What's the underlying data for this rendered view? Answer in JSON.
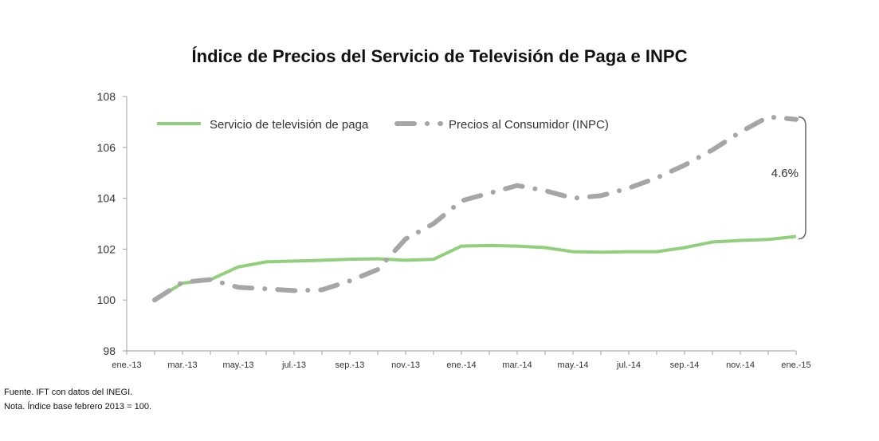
{
  "chart_data": {
    "type": "line",
    "title": "Índice de Precios del Servicio de Televisión de Paga e INPC",
    "xlabel": "",
    "ylabel": "",
    "ylim": [
      98,
      108
    ],
    "yticks": [
      "98",
      "100",
      "102",
      "104",
      "106",
      "108"
    ],
    "grid": false,
    "legend_position": "top-left",
    "categories": [
      "ene.-13",
      "feb.-13",
      "mar.-13",
      "abr.-13",
      "may.-13",
      "jun.-13",
      "jul.-13",
      "ago.-13",
      "sep.-13",
      "oct.-13",
      "nov.-13",
      "dic.-13",
      "ene.-14",
      "feb.-14",
      "mar.-14",
      "abr.-14",
      "may.-14",
      "jun.-14",
      "jul.-14",
      "ago.-14",
      "sep.-14",
      "oct.-14",
      "nov.-14",
      "dic.-14",
      "ene.-15"
    ],
    "xtick_labels": [
      "ene.-13",
      "mar.-13",
      "may.-13",
      "jul.-13",
      "sep.-13",
      "nov.-13",
      "ene.-14",
      "mar.-14",
      "may.-14",
      "jul.-14",
      "sep.-14",
      "nov.-14",
      "ene.-15"
    ],
    "series": [
      {
        "name": "Servicio de televisión de paga",
        "color": "#92cf7d",
        "style": "solid",
        "values": [
          null,
          100.0,
          100.66,
          100.8,
          101.3,
          101.5,
          101.53,
          101.56,
          101.6,
          101.62,
          101.56,
          101.6,
          102.12,
          102.14,
          102.12,
          102.06,
          101.9,
          101.88,
          101.9,
          101.9,
          102.06,
          102.28,
          102.34,
          102.38,
          102.5
        ]
      },
      {
        "name": "Precios al Consumidor (INPC)",
        "color": "#a6a6a6",
        "style": "dash-dot",
        "values": [
          null,
          100.0,
          100.7,
          100.8,
          100.5,
          100.44,
          100.37,
          100.4,
          100.75,
          101.2,
          102.4,
          103.0,
          103.9,
          104.2,
          104.5,
          104.3,
          104.0,
          104.1,
          104.4,
          104.8,
          105.3,
          105.9,
          106.6,
          107.2,
          107.1
        ]
      }
    ],
    "annotation": "4.6%"
  },
  "notes": [
    "Fuente. IFT con datos del INEGI.",
    "Nota. Índice base febrero 2013 = 100."
  ]
}
